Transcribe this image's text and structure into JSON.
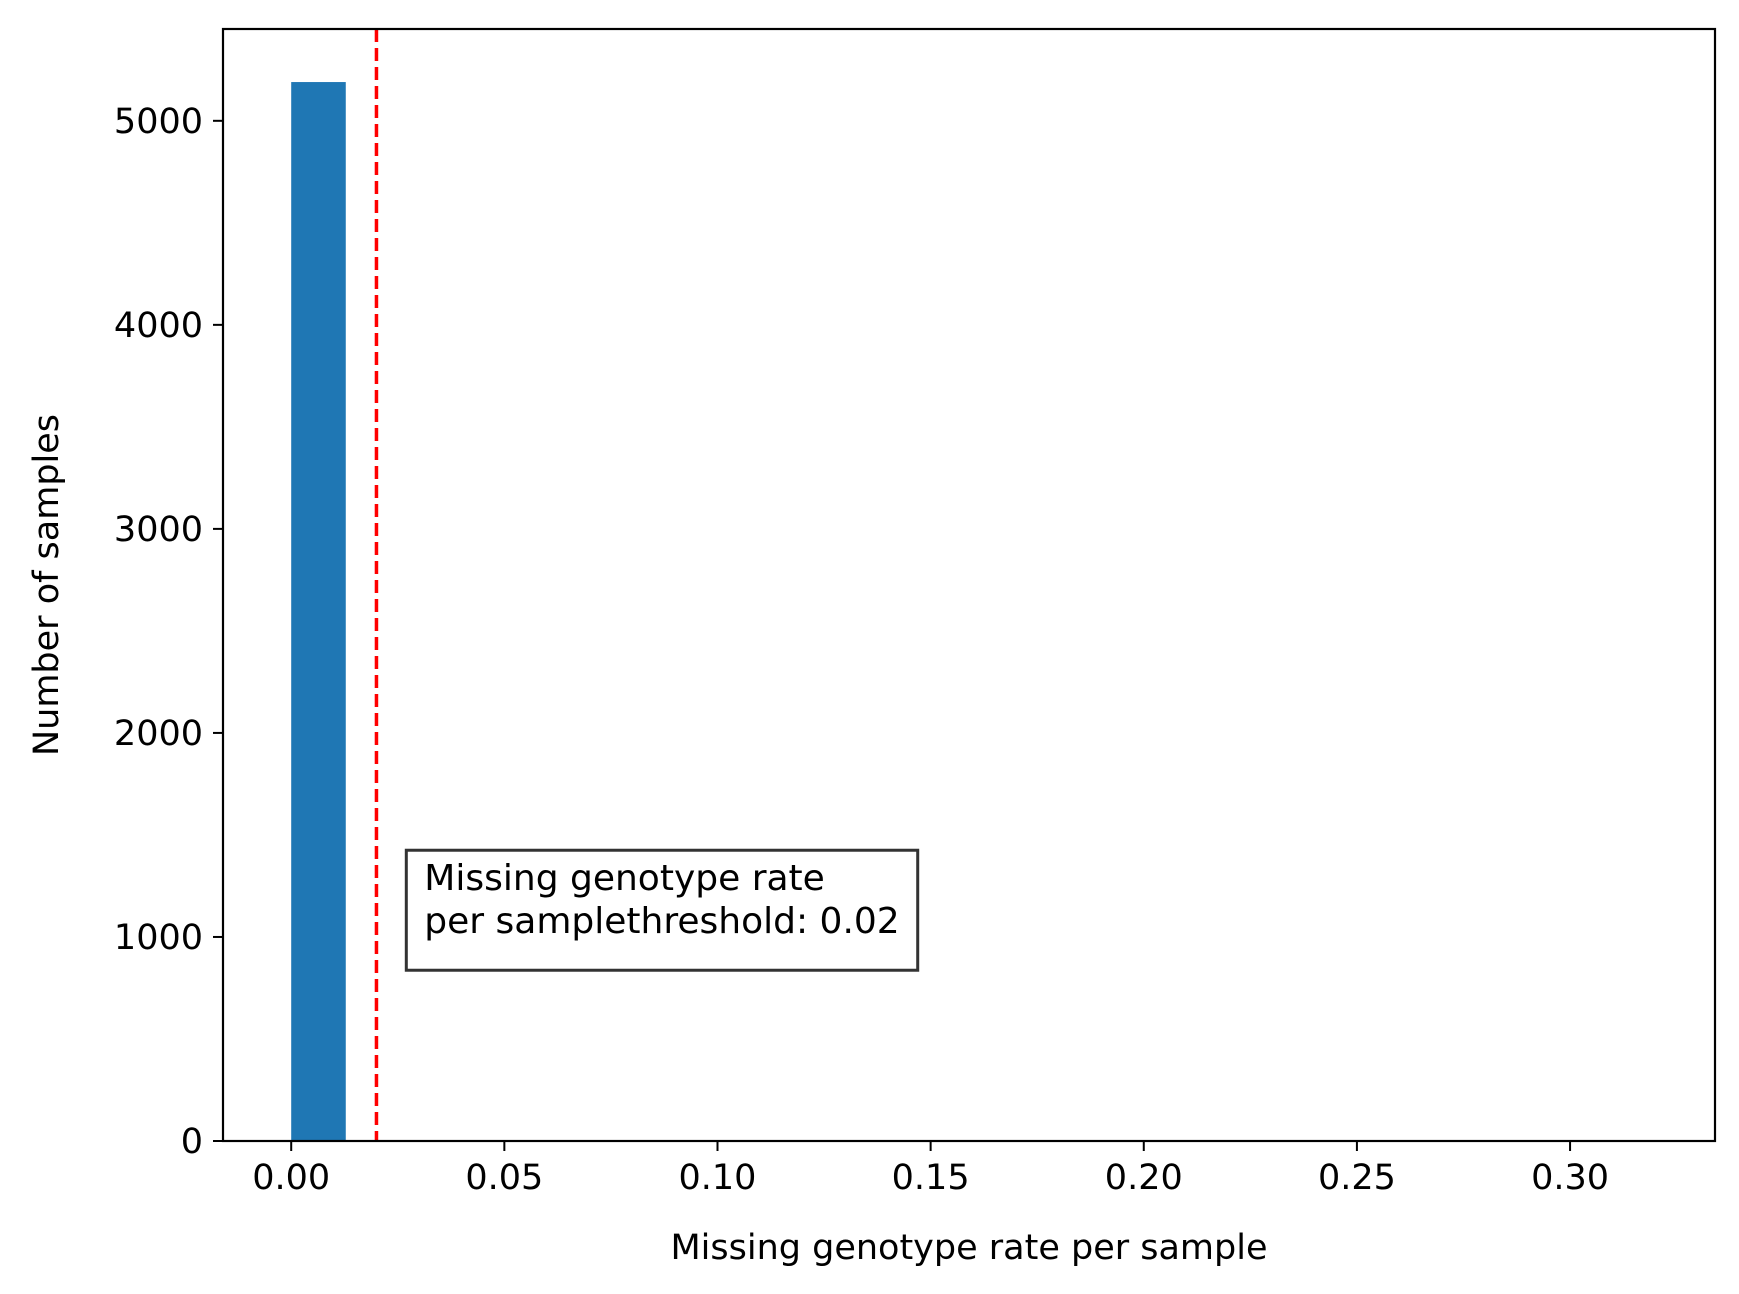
{
  "chart_data": {
    "type": "bar",
    "title": "",
    "xlabel": "Missing genotype rate per sample",
    "ylabel": "Number of samples",
    "xlim": [
      -0.016,
      0.334
    ],
    "ylim": [
      0,
      5450
    ],
    "xticks": [
      0.0,
      0.05,
      0.1,
      0.15,
      0.2,
      0.25,
      0.3
    ],
    "xtick_labels": [
      "0.00",
      "0.05",
      "0.10",
      "0.15",
      "0.20",
      "0.25",
      "0.30"
    ],
    "yticks": [
      0,
      1000,
      2000,
      3000,
      4000,
      5000
    ],
    "ytick_labels": [
      "0",
      "1000",
      "2000",
      "3000",
      "4000",
      "5000"
    ],
    "bins": [
      {
        "x0": 0.0,
        "x1": 0.0128,
        "count": 5190
      }
    ],
    "bar_color": "#1f77b4",
    "threshold": {
      "x": 0.02,
      "color": "#ff0000",
      "style": "dashed"
    },
    "annotation": {
      "lines": [
        "Missing genotype rate",
        "per samplethreshold: 0.02"
      ],
      "x": 0.027,
      "y": 1180
    },
    "grid": false,
    "legend": "none"
  }
}
